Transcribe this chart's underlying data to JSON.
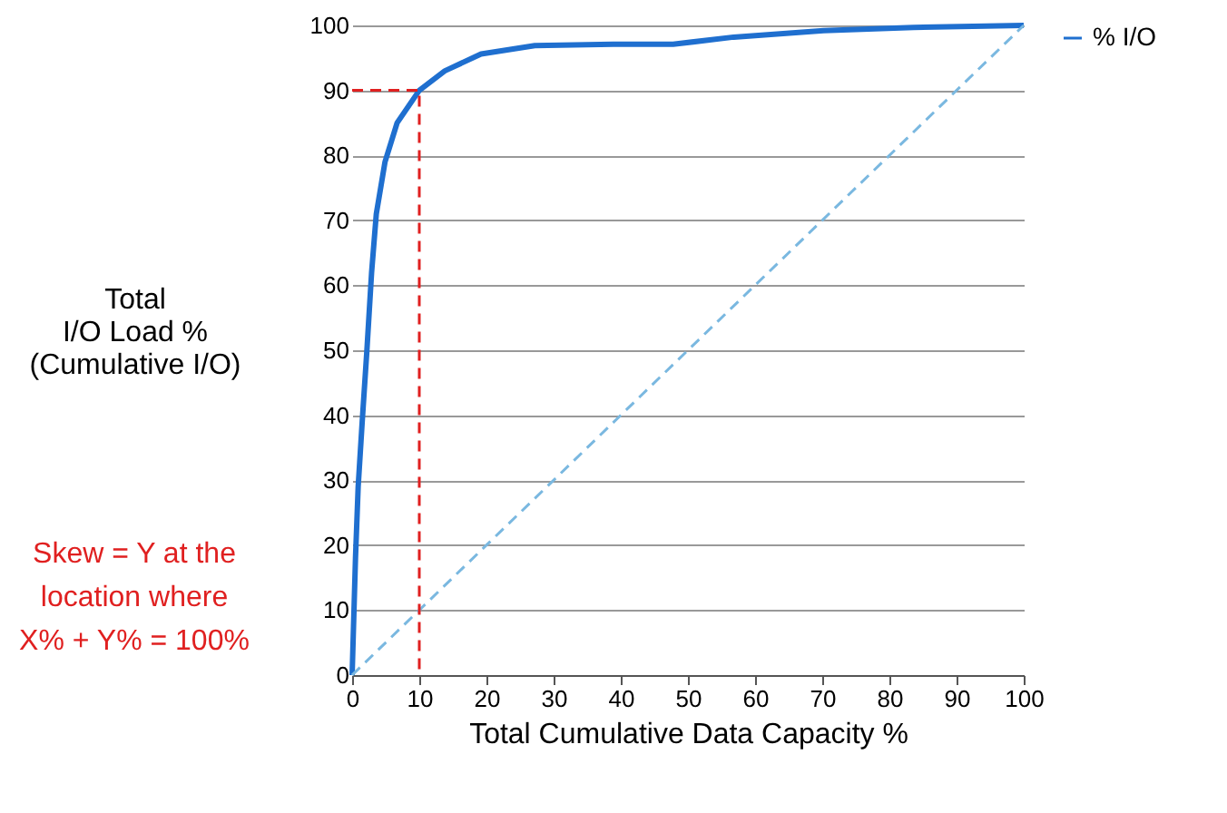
{
  "chart_data": {
    "type": "line",
    "xlabel": "Total Cumulative Data Capacity %",
    "ylabel": "Total\nI/O Load %\n(Cumulative I/O)",
    "xlim": [
      0,
      100
    ],
    "ylim": [
      0,
      100
    ],
    "xticks": [
      0,
      10,
      20,
      30,
      40,
      50,
      60,
      70,
      80,
      90,
      100
    ],
    "yticks": [
      0,
      10,
      20,
      30,
      40,
      50,
      60,
      70,
      80,
      90,
      100
    ],
    "grid": "y",
    "legend": "right",
    "marker": "none",
    "series": [
      {
        "name": "% I/O",
        "color": "#1f6fcf",
        "line_style": "solid",
        "x": [
          0,
          0.5,
          0.9,
          1.5,
          2.2,
          2.9,
          3.6,
          4.9,
          6.7,
          10,
          13.8,
          19.2,
          27.2,
          38.9,
          44.2,
          47.8,
          56.8,
          70.2,
          83.6,
          100
        ],
        "values": [
          0,
          18,
          29,
          39,
          50,
          62,
          71,
          79,
          85,
          90,
          93,
          95.6,
          96.9,
          97.1,
          97.1,
          97.1,
          98.2,
          99.2,
          99.7,
          100
        ]
      },
      {
        "type": "line",
        "color": "#7ab8e0",
        "line_style": "dashed",
        "x": [
          0,
          100
        ],
        "values": [
          0,
          100
        ]
      },
      {
        "type": "line",
        "color": "#e02020",
        "line_style": "dashed",
        "x": [
          0,
          10,
          10
        ],
        "values": [
          90,
          90,
          0
        ]
      }
    ],
    "annotations": [
      "Skew = Y at the\nlocation where\nX% + Y% = 100%"
    ]
  }
}
